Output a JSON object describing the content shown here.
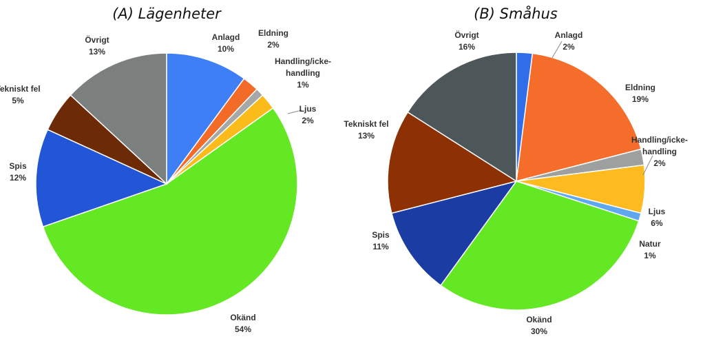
{
  "chart_data": [
    {
      "type": "pie",
      "title": "(A) Lägenheter",
      "unit": "%",
      "slices": [
        {
          "label": [
            "Anlagd"
          ],
          "value": 10,
          "value_label": "10%",
          "color": "#3f7ff5"
        },
        {
          "label": [
            "Eldning"
          ],
          "value": 2,
          "value_label": "2%",
          "color": "#f26b28"
        },
        {
          "label": [
            "Handling/icke-",
            "handling"
          ],
          "value": 1,
          "value_label": "1%",
          "color": "#a5a8a6"
        },
        {
          "label": [
            "Ljus"
          ],
          "value": 2,
          "value_label": "2%",
          "color": "#fbbc1b"
        },
        {
          "label": [
            "Okänd"
          ],
          "value": 54,
          "value_label": "54%",
          "color": "#64e824"
        },
        {
          "label": [
            "Spis"
          ],
          "value": 12,
          "value_label": "12%",
          "color": "#2256d6"
        },
        {
          "label": [
            "Tekniskt fel"
          ],
          "value": 5,
          "value_label": "5%",
          "color": "#6d2a06"
        },
        {
          "label": [
            "Övrigt"
          ],
          "value": 13,
          "value_label": "13%",
          "color": "#7b7f7d"
        }
      ]
    },
    {
      "type": "pie",
      "title": "(B) Småhus",
      "unit": "%",
      "slices": [
        {
          "label": [
            "Anlagd"
          ],
          "value": 2,
          "value_label": "2%",
          "color": "#2f6ee8"
        },
        {
          "label": [
            "Eldning"
          ],
          "value": 19,
          "value_label": "19%",
          "color": "#f46d2b"
        },
        {
          "label": [
            "Handling/icke-",
            "handling"
          ],
          "value": 2,
          "value_label": "2%",
          "color": "#9da09e"
        },
        {
          "label": [
            "Ljus"
          ],
          "value": 6,
          "value_label": "6%",
          "color": "#fdbb1f"
        },
        {
          "label": [
            "Natur"
          ],
          "value": 1,
          "value_label": "1%",
          "color": "#5fa8ef"
        },
        {
          "label": [
            "Okänd"
          ],
          "value": 30,
          "value_label": "30%",
          "color": "#64e824"
        },
        {
          "label": [
            "Spis"
          ],
          "value": 11,
          "value_label": "11%",
          "color": "#1a3ca3"
        },
        {
          "label": [
            "Tekniskt fel"
          ],
          "value": 13,
          "value_label": "13%",
          "color": "#8d3004"
        },
        {
          "label": [
            "Övrigt"
          ],
          "value": 16,
          "value_label": "16%",
          "color": "#4d5659"
        }
      ]
    }
  ]
}
